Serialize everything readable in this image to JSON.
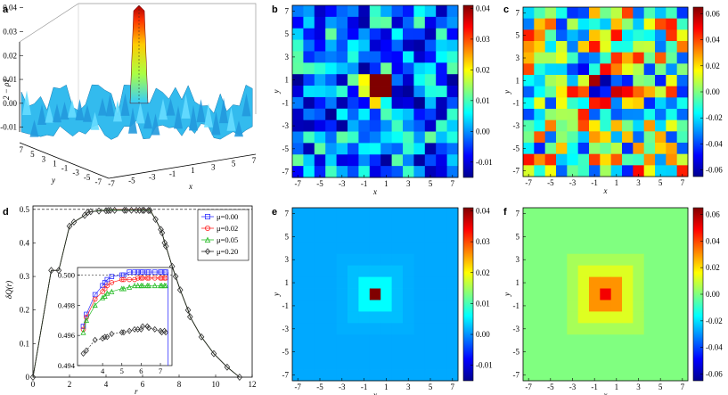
{
  "panels": {
    "a": "a",
    "b": "b",
    "c": "c",
    "d": "d",
    "e": "e",
    "f": "f"
  },
  "colors": {
    "line_mu0": "#3333ff",
    "line_mu002": "#ff2222",
    "line_mu005": "#22bb22",
    "line_mu02": "#222222"
  },
  "chart_data": [
    {
      "id": "a",
      "type": "surface3d",
      "zlabel": "2 − ρ1",
      "xlabel": "x",
      "ylabel": "y",
      "z_ticks": [
        "0.04",
        "0.03",
        "0.02",
        "0.01",
        "0.00",
        "-0.01"
      ],
      "x_ticks": [
        "-7",
        "-5",
        "-3",
        "-1",
        "1",
        "3",
        "5",
        "7"
      ],
      "y_ticks": [
        "7",
        "5",
        "3",
        "1",
        "-1",
        "-3",
        "-5",
        "-7"
      ],
      "peak_value": 0.041
    },
    {
      "id": "b",
      "type": "heatmap",
      "xlabel": "x",
      "ylabel": "y",
      "x_ticks": [
        "-7",
        "-5",
        "-3",
        "-1",
        "1",
        "3",
        "5",
        "7"
      ],
      "y_ticks": [
        "7",
        "5",
        "3",
        "1",
        "-1",
        "-3",
        "-5",
        "-7"
      ],
      "colorbar_ticks": [
        "0.04",
        "0.03",
        "0.02",
        "0.01",
        "0.00",
        "-0.01"
      ],
      "vmin": -0.015,
      "vmax": 0.041,
      "n": 15
    },
    {
      "id": "c",
      "type": "heatmap",
      "xlabel": "x",
      "ylabel": "y",
      "x_ticks": [
        "-7",
        "-5",
        "-3",
        "-1",
        "1",
        "3",
        "5",
        "7"
      ],
      "y_ticks": [
        "7",
        "5",
        "3",
        "1",
        "-1",
        "-3",
        "-5",
        "-7"
      ],
      "colorbar_ticks": [
        "0.06",
        "0.04",
        "0.02",
        "0.00",
        "-0.02",
        "-0.04",
        "-0.06"
      ],
      "vmin": -0.065,
      "vmax": 0.065,
      "n": 15
    },
    {
      "id": "d",
      "type": "line",
      "xlabel": "r",
      "ylabel": "δQ(r)",
      "x_ticks": [
        "0",
        "2",
        "4",
        "6",
        "8",
        "10",
        "12"
      ],
      "y_ticks": [
        "0",
        "0.1",
        "0.2",
        "0.3",
        "0.4",
        "0.5"
      ],
      "xlim": [
        0,
        12
      ],
      "ylim": [
        0,
        0.51
      ],
      "reference_line": 0.5,
      "legend": [
        "μ=0.00",
        "μ=0.02",
        "μ=0.05",
        "μ=0.20"
      ],
      "x": [
        0,
        1,
        1.41,
        2,
        2.24,
        2.83,
        3,
        3.16,
        3.61,
        4,
        4.12,
        4.24,
        4.47,
        5,
        5.1,
        5.39,
        5.66,
        5.83,
        6,
        6.08,
        6.32,
        6.4,
        6.71,
        7,
        7.07,
        7.21,
        7.28,
        7.62,
        7.81,
        8.06,
        8.49,
        8.6,
        9.22,
        9.9,
        10.63,
        11.31
      ],
      "series": [
        {
          "name": "μ=0.00",
          "values": [
            0,
            0.318,
            0.318,
            0.45,
            0.462,
            0.482,
            0.491,
            0.493,
            0.496,
            0.497,
            0.498,
            0.499,
            0.5,
            0.5,
            0.5,
            0.5,
            0.5,
            0.5,
            0.5,
            0.5,
            0.5,
            0.5,
            0.47,
            0.44,
            0.43,
            0.4,
            0.39,
            0.33,
            0.3,
            0.26,
            0.2,
            0.18,
            0.12,
            0.07,
            0.03,
            0.0
          ]
        },
        {
          "name": "μ=0.02",
          "values": [
            0,
            0.318,
            0.318,
            0.45,
            0.462,
            0.482,
            0.491,
            0.493,
            0.496,
            0.497,
            0.498,
            0.499,
            0.4995,
            0.4995,
            0.4995,
            0.4995,
            0.4995,
            0.4995,
            0.4995,
            0.4995,
            0.4995,
            0.4995,
            0.47,
            0.44,
            0.43,
            0.4,
            0.39,
            0.33,
            0.3,
            0.26,
            0.2,
            0.18,
            0.12,
            0.07,
            0.03,
            0.0
          ]
        },
        {
          "name": "μ=0.05",
          "values": [
            0,
            0.318,
            0.318,
            0.45,
            0.462,
            0.482,
            0.491,
            0.493,
            0.496,
            0.497,
            0.498,
            0.499,
            0.4988,
            0.4988,
            0.4988,
            0.4988,
            0.4988,
            0.4988,
            0.4988,
            0.4988,
            0.4988,
            0.4988,
            0.47,
            0.44,
            0.43,
            0.4,
            0.39,
            0.33,
            0.3,
            0.26,
            0.2,
            0.18,
            0.12,
            0.07,
            0.03,
            0.0
          ]
        },
        {
          "name": "μ=0.20",
          "values": [
            0,
            0.318,
            0.318,
            0.45,
            0.462,
            0.482,
            0.491,
            0.493,
            0.495,
            0.496,
            0.4965,
            0.497,
            0.497,
            0.4972,
            0.4972,
            0.4972,
            0.4972,
            0.497,
            0.497,
            0.497,
            0.4968,
            0.4966,
            0.47,
            0.44,
            0.43,
            0.4,
            0.39,
            0.33,
            0.3,
            0.26,
            0.2,
            0.18,
            0.12,
            0.07,
            0.03,
            0.0
          ]
        }
      ],
      "inset": {
        "x_ticks": [
          "4",
          "5",
          "6",
          "7"
        ],
        "y_ticks": [
          "0.500",
          "0.498",
          "0.496",
          "0.494"
        ],
        "xlim": [
          2.7,
          7.6
        ],
        "ylim": [
          0.494,
          0.5005
        ],
        "x": [
          3,
          3.16,
          3.61,
          4,
          4.12,
          4.24,
          4.47,
          5,
          5.1,
          5.39,
          5.66,
          5.83,
          6,
          6.08,
          6.32,
          6.4,
          6.71,
          7,
          7.07,
          7.21,
          7.28
        ],
        "series": [
          {
            "name": "μ=0.00",
            "values": [
              0.4966,
              0.4974,
              0.4987,
              0.4993,
              0.4995,
              0.4997,
              0.4999,
              0.5,
              0.5,
              0.5002,
              0.5002,
              0.5002,
              0.5002,
              0.5002,
              0.5002,
              0.5002,
              0.5002,
              0.5002,
              0.5002,
              0.5002,
              0.5002
            ]
          },
          {
            "name": "μ=0.02",
            "values": [
              0.4964,
              0.4972,
              0.4984,
              0.4989,
              0.4991,
              0.4993,
              0.4995,
              0.4997,
              0.4997,
              0.4997,
              0.4997,
              0.4998,
              0.4998,
              0.4998,
              0.4998,
              0.4998,
              0.4998,
              0.4998,
              0.4998,
              0.4998,
              0.4998
            ]
          },
          {
            "name": "μ=0.05",
            "values": [
              0.4962,
              0.497,
              0.498,
              0.4985,
              0.4986,
              0.4988,
              0.4989,
              0.4991,
              0.4991,
              0.4992,
              0.4993,
              0.4993,
              0.4993,
              0.4993,
              0.4993,
              0.4993,
              0.4993,
              0.4993,
              0.4993,
              0.4993,
              0.4993
            ]
          },
          {
            "name": "μ=0.20",
            "values": [
              0.4948,
              0.495,
              0.4957,
              0.4958,
              0.4959,
              0.4959,
              0.4961,
              0.4962,
              0.4962,
              0.4963,
              0.4964,
              0.4964,
              0.4964,
              0.4966,
              0.4966,
              0.4965,
              0.4964,
              0.4963,
              0.4962,
              0.4963,
              0.4962
            ]
          }
        ]
      }
    },
    {
      "id": "e",
      "type": "heatmap",
      "xlabel": "x",
      "ylabel": "y",
      "x_ticks": [
        "-7",
        "-5",
        "-3",
        "-1",
        "1",
        "3",
        "5",
        "7"
      ],
      "y_ticks": [
        "7",
        "5",
        "3",
        "1",
        "-1",
        "-3",
        "-5",
        "-7"
      ],
      "colorbar_ticks": [
        "0.04",
        "0.03",
        "0.02",
        "0.01",
        "0.00",
        "-0.01"
      ],
      "vmin": -0.015,
      "vmax": 0.041,
      "n": 15
    },
    {
      "id": "f",
      "type": "heatmap",
      "xlabel": "x",
      "ylabel": "y",
      "x_ticks": [
        "-7",
        "-5",
        "-3",
        "-1",
        "1",
        "3",
        "5",
        "7"
      ],
      "y_ticks": [
        "7",
        "5",
        "3",
        "1",
        "-1",
        "-3",
        "-5",
        "-7"
      ],
      "colorbar_ticks": [
        "0.06",
        "0.04",
        "0.02",
        "0.00",
        "-0.02",
        "-0.04",
        "-0.06"
      ],
      "vmin": -0.065,
      "vmax": 0.065,
      "n": 15
    }
  ]
}
